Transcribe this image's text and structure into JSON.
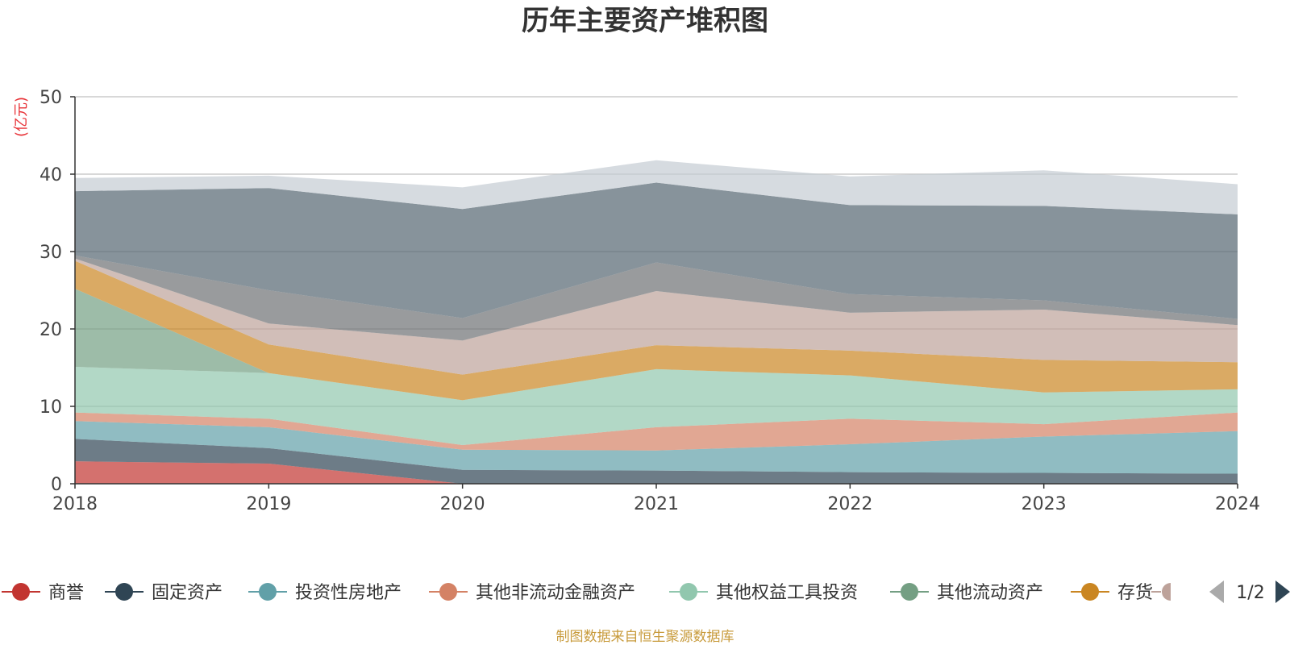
{
  "chart_data": {
    "type": "area",
    "stacked": true,
    "title": "历年主要资产堆积图",
    "ylabel": "(亿元)",
    "xlabel": "",
    "x": [
      "2018",
      "2019",
      "2020",
      "2021",
      "2022",
      "2023",
      "2024"
    ],
    "ylim": [
      0,
      50
    ],
    "yticks": [
      0,
      10,
      20,
      30,
      40,
      50
    ],
    "grid": true,
    "series": [
      {
        "name": "商誉",
        "color": "#c23531",
        "values": [
          2.9,
          2.6,
          0,
          0,
          0,
          0,
          0
        ]
      },
      {
        "name": "固定资产",
        "color": "#2f4554",
        "values": [
          2.9,
          2.0,
          1.8,
          1.7,
          1.5,
          1.4,
          1.3
        ]
      },
      {
        "name": "投资性房地产",
        "color": "#61a0a8",
        "values": [
          2.3,
          2.7,
          2.6,
          2.6,
          3.6,
          4.7,
          5.5
        ]
      },
      {
        "name": "其他非流动金融资产",
        "color": "#d48265",
        "values": [
          1.1,
          1.1,
          0.6,
          3.0,
          3.3,
          1.6,
          2.4
        ]
      },
      {
        "name": "其他权益工具投资",
        "color": "#91c7ae",
        "values": [
          5.9,
          5.9,
          5.8,
          7.5,
          5.6,
          4.1,
          3.0
        ]
      },
      {
        "name": "其他流动资产",
        "color": "#749f83",
        "values": [
          10.1,
          0,
          0,
          0,
          0,
          0,
          0
        ]
      },
      {
        "name": "存货",
        "color": "#ca8622",
        "values": [
          3.6,
          3.7,
          3.3,
          3.1,
          3.2,
          4.2,
          3.5
        ]
      },
      {
        "name": "",
        "color": "#bda29a",
        "values": [
          0.3,
          2.7,
          4.4,
          7.0,
          4.9,
          6.5,
          4.8
        ]
      },
      {
        "name": "",
        "color": "#6e7074",
        "values": [
          0.4,
          4.3,
          2.9,
          3.7,
          2.4,
          1.2,
          0.8
        ]
      },
      {
        "name": "",
        "color": "#546570",
        "values": [
          8.3,
          13.2,
          14.1,
          10.3,
          11.5,
          12.2,
          13.5
        ]
      },
      {
        "name": "",
        "color": "#c4ccd3",
        "values": [
          1.7,
          1.6,
          2.8,
          2.9,
          3.7,
          4.6,
          3.9
        ]
      }
    ],
    "legend": {
      "placement": "bottom",
      "page": "1/2",
      "visible_count": 7
    },
    "source_note": "制图数据来自恒生聚源数据库"
  }
}
